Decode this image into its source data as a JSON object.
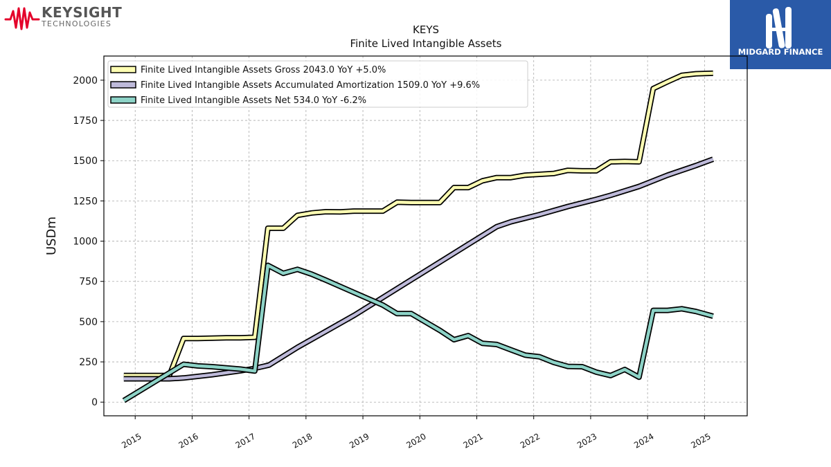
{
  "brand": {
    "left_name": "KEYSIGHT",
    "left_sub": "TECHNOLOGIES",
    "right_name": "MIDGARD FINANCE",
    "colors": {
      "keysight_red": "#e4032b",
      "midgard_blue": "#2a5aa8"
    }
  },
  "chart_data": {
    "type": "line",
    "title": "KEYS",
    "subtitle": "Finite Lived Intangible Assets",
    "xlabel": "",
    "ylabel": "USDm",
    "ylim": [
      -85,
      2150
    ],
    "xlim": [
      2014.45,
      2025.75
    ],
    "yticks": [
      0,
      250,
      500,
      750,
      1000,
      1250,
      1500,
      1750,
      2000
    ],
    "xticks": [
      2015,
      2016,
      2017,
      2018,
      2019,
      2020,
      2021,
      2022,
      2023,
      2024,
      2025
    ],
    "grid": true,
    "legend_position": "top-left",
    "series": [
      {
        "name": "Finite Lived Intangible Assets Gross",
        "legend_label": "Finite Lived Intangible Assets Gross  2043.0 YoY +5.0%",
        "color": "#ffffb3",
        "points": [
          [
            2014.8,
            165
          ],
          [
            2015.6,
            165
          ],
          [
            2015.85,
            395
          ],
          [
            2016.1,
            395
          ],
          [
            2016.6,
            400
          ],
          [
            2016.85,
            400
          ],
          [
            2017.1,
            403
          ],
          [
            2017.33,
            1080
          ],
          [
            2017.6,
            1080
          ],
          [
            2017.85,
            1160
          ],
          [
            2018.1,
            1175
          ],
          [
            2018.35,
            1183
          ],
          [
            2018.6,
            1182
          ],
          [
            2018.85,
            1187
          ],
          [
            2019.1,
            1187
          ],
          [
            2019.35,
            1187
          ],
          [
            2019.6,
            1242
          ],
          [
            2019.85,
            1240
          ],
          [
            2020.35,
            1240
          ],
          [
            2020.6,
            1333
          ],
          [
            2020.85,
            1333
          ],
          [
            2021.1,
            1375
          ],
          [
            2021.35,
            1395
          ],
          [
            2021.6,
            1395
          ],
          [
            2021.85,
            1410
          ],
          [
            2022.1,
            1415
          ],
          [
            2022.35,
            1420
          ],
          [
            2022.6,
            1440
          ],
          [
            2022.85,
            1437
          ],
          [
            2023.1,
            1437
          ],
          [
            2023.35,
            1493
          ],
          [
            2023.6,
            1495
          ],
          [
            2023.85,
            1493
          ],
          [
            2024.1,
            1948
          ],
          [
            2024.35,
            1990
          ],
          [
            2024.6,
            2030
          ],
          [
            2024.85,
            2040
          ],
          [
            2025.15,
            2043
          ]
        ]
      },
      {
        "name": "Finite Lived Intangible Assets Accumulated Amortization",
        "legend_label": "Finite Lived Intangible Assets Accumulated Amortization  1509.0 YoY +9.6%",
        "color": "#bebada",
        "points": [
          [
            2014.8,
            145
          ],
          [
            2015.6,
            145
          ],
          [
            2015.85,
            150
          ],
          [
            2016.35,
            170
          ],
          [
            2016.85,
            195
          ],
          [
            2017.1,
            210
          ],
          [
            2017.35,
            230
          ],
          [
            2017.85,
            340
          ],
          [
            2018.35,
            440
          ],
          [
            2018.85,
            540
          ],
          [
            2019.35,
            650
          ],
          [
            2019.85,
            760
          ],
          [
            2020.35,
            870
          ],
          [
            2020.85,
            980
          ],
          [
            2021.35,
            1090
          ],
          [
            2021.6,
            1120
          ],
          [
            2022.1,
            1165
          ],
          [
            2022.6,
            1215
          ],
          [
            2023.1,
            1260
          ],
          [
            2023.35,
            1285
          ],
          [
            2023.85,
            1340
          ],
          [
            2024.35,
            1410
          ],
          [
            2024.85,
            1470
          ],
          [
            2025.15,
            1509
          ]
        ]
      },
      {
        "name": "Finite Lived Intangible Assets Net",
        "legend_label": "Finite Lived Intangible Assets Net  534.0 YoY -6.2%",
        "color": "#8dd3c7",
        "points": [
          [
            2014.8,
            10
          ],
          [
            2015.85,
            235
          ],
          [
            2016.1,
            225
          ],
          [
            2016.35,
            220
          ],
          [
            2016.85,
            205
          ],
          [
            2017.1,
            193
          ],
          [
            2017.33,
            850
          ],
          [
            2017.6,
            800
          ],
          [
            2017.85,
            825
          ],
          [
            2018.1,
            795
          ],
          [
            2018.35,
            758
          ],
          [
            2018.85,
            680
          ],
          [
            2019.35,
            603
          ],
          [
            2019.6,
            550
          ],
          [
            2019.85,
            550
          ],
          [
            2020.35,
            446
          ],
          [
            2020.6,
            388
          ],
          [
            2020.85,
            413
          ],
          [
            2021.1,
            365
          ],
          [
            2021.35,
            358
          ],
          [
            2021.6,
            325
          ],
          [
            2021.85,
            292
          ],
          [
            2022.1,
            282
          ],
          [
            2022.35,
            247
          ],
          [
            2022.6,
            222
          ],
          [
            2022.85,
            220
          ],
          [
            2023.1,
            186
          ],
          [
            2023.35,
            165
          ],
          [
            2023.6,
            203
          ],
          [
            2023.85,
            155
          ],
          [
            2024.1,
            570
          ],
          [
            2024.35,
            570
          ],
          [
            2024.6,
            580
          ],
          [
            2024.85,
            563
          ],
          [
            2025.15,
            534
          ]
        ]
      }
    ]
  }
}
